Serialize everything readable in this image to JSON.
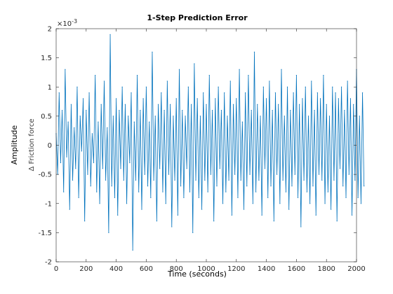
{
  "chart_data": {
    "type": "line",
    "title": "1-Step Prediction Error",
    "xlabel": "Time (seconds)",
    "ylabel": "Amplitude",
    "channel_label": "Δ Friction force",
    "y_exponent_label": "×10",
    "y_exponent_power": "-3",
    "xlim": [
      0,
      2000
    ],
    "ylim": [
      -2,
      2
    ],
    "x_ticks": [
      0,
      200,
      400,
      600,
      800,
      1000,
      1200,
      1400,
      1600,
      1800,
      2000
    ],
    "x_tick_labels": [
      "0",
      "200",
      "400",
      "600",
      "800",
      "1000",
      "1200",
      "1400",
      "1600",
      "1800",
      "2000"
    ],
    "y_ticks": [
      -2,
      -1.5,
      -1,
      -0.5,
      0,
      0.5,
      1,
      1.5,
      2
    ],
    "y_tick_labels": [
      "-2",
      "-1.5",
      "-1",
      "-0.5",
      "0",
      "0.5",
      "1",
      "1.5",
      "2"
    ],
    "grid": false,
    "series_color": "#0072BD",
    "series": [
      {
        "name": "",
        "sample_interval": 10,
        "x_start": 0,
        "values": [
          0.2,
          -0.5,
          0.9,
          -0.3,
          0.6,
          -0.8,
          1.3,
          -0.2,
          0.4,
          -1.1,
          0.7,
          -0.6,
          0.3,
          -0.4,
          1.0,
          -0.9,
          0.5,
          -0.1,
          0.8,
          -1.3,
          0.6,
          -0.5,
          0.9,
          -0.7,
          0.2,
          -0.3,
          1.2,
          -0.8,
          0.4,
          -1.0,
          0.7,
          -0.4,
          1.1,
          -0.6,
          0.3,
          -1.5,
          1.9,
          -0.7,
          0.5,
          -0.9,
          0.8,
          -1.2,
          0.6,
          -0.4,
          1.0,
          -0.6,
          0.7,
          -1.0,
          0.5,
          -0.3,
          0.9,
          -1.8,
          0.4,
          -0.6,
          1.2,
          -0.8,
          0.6,
          -1.1,
          0.8,
          -0.5,
          1.0,
          -0.7,
          0.4,
          -0.9,
          1.6,
          -0.6,
          0.5,
          -1.3,
          0.7,
          -0.4,
          0.9,
          -0.8,
          0.6,
          -1.0,
          1.1,
          -0.5,
          0.7,
          -1.4,
          0.5,
          -0.6,
          0.8,
          -1.2,
          1.3,
          -0.7,
          0.6,
          -0.9,
          0.5,
          -0.4,
          1.0,
          -0.8,
          0.7,
          -1.5,
          1.4,
          -0.6,
          0.8,
          -0.9,
          0.5,
          -1.1,
          0.9,
          -0.6,
          0.7,
          -0.8,
          1.2,
          -0.5,
          0.6,
          -1.3,
          0.8,
          -0.7,
          1.0,
          -0.4,
          0.6,
          -1.0,
          0.9,
          -0.8,
          0.5,
          -0.6,
          1.1,
          -1.2,
          0.7,
          -0.5,
          0.8,
          -0.9,
          1.3,
          -0.6,
          0.4,
          -1.1,
          0.9,
          -0.7,
          1.2,
          -0.5,
          0.6,
          -1.0,
          1.6,
          -0.8,
          0.7,
          -0.6,
          0.5,
          -1.2,
          1.0,
          -0.4,
          0.8,
          -0.9,
          1.1,
          -0.7,
          0.6,
          -1.3,
          0.9,
          -0.5,
          0.7,
          -1.0,
          1.3,
          -0.6,
          0.5,
          -0.8,
          1.0,
          -1.1,
          0.6,
          -0.7,
          0.9,
          -0.5,
          1.2,
          -0.9,
          0.7,
          -1.4,
          0.8,
          -0.6,
          1.0,
          -0.8,
          0.5,
          -1.0,
          1.1,
          -0.7,
          0.6,
          -1.2,
          0.9,
          -0.5,
          0.8,
          -0.6,
          1.2,
          -1.0,
          0.7,
          -0.8,
          0.5,
          -1.1,
          1.0,
          -0.6,
          0.9,
          -1.3,
          0.8,
          -0.4,
          1.0,
          -0.7,
          0.6,
          -0.9,
          1.1,
          -0.5,
          0.8,
          -1.2,
          0.7,
          -0.6,
          1.3,
          -0.9,
          0.5,
          -1.0,
          0.9,
          -0.7
        ]
      }
    ]
  }
}
